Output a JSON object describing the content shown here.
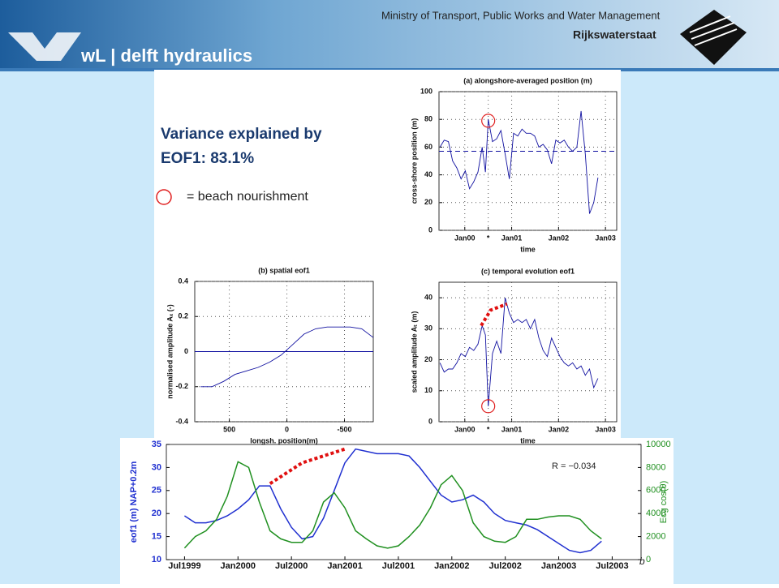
{
  "header": {
    "logo_text": "wL | delft hydraulics",
    "ministry": "Ministry of Transport, Public Works and Water Management",
    "agency": "Rijkswaterstaat"
  },
  "annotations": {
    "variance_line1": "Variance explained by",
    "variance_line2": "EOF1: 83.1%",
    "legend_circle": "= beach nourishment",
    "correlation": "R = −0.034",
    "panel_letter": "b"
  },
  "chart_data": [
    {
      "type": "line",
      "title": "(a) alongshore-averaged position (m)",
      "xlabel": "time",
      "ylabel": "cross-shore position (m)",
      "x": [
        1999.47,
        1999.56,
        1999.65,
        1999.74,
        1999.83,
        1999.92,
        2000.01,
        2000.1,
        2000.19,
        2000.28,
        2000.37,
        2000.44,
        2000.5,
        2000.59,
        2000.68,
        2000.77,
        2000.86,
        2000.95,
        2001.04,
        2001.13,
        2001.22,
        2001.31,
        2001.4,
        2001.49,
        2001.58,
        2001.67,
        2001.76,
        2001.85,
        2001.94,
        2002.03,
        2002.12,
        2002.21,
        2002.3,
        2002.39,
        2002.48,
        2002.57,
        2002.66,
        2002.75,
        2002.84
      ],
      "series": [
        {
          "color": "#1010a0",
          "values": [
            60,
            65,
            64,
            50,
            45,
            37,
            43,
            30,
            35,
            42,
            60,
            42,
            80,
            64,
            66,
            72,
            55,
            37,
            70,
            68,
            73,
            70,
            70,
            68,
            60,
            62,
            58,
            48,
            65,
            63,
            65,
            60,
            57,
            60,
            86,
            55,
            12,
            20,
            38
          ]
        }
      ],
      "hline": 57,
      "hline_color": "#1010a0",
      "markers": [
        {
          "x": 2000.5,
          "y": 79
        }
      ],
      "xlim": [
        1999.45,
        2003.24
      ],
      "ylim": [
        0,
        100
      ],
      "xticks": [
        {
          "value": 2000,
          "label": "Jan00"
        },
        {
          "value": 2000.5,
          "label": "*"
        },
        {
          "value": 2001,
          "label": "Jan01"
        },
        {
          "value": 2002,
          "label": "Jan02"
        },
        {
          "value": 2003,
          "label": "Jan03"
        }
      ],
      "yticks": [
        0,
        20,
        40,
        60,
        80,
        100
      ],
      "grid": true
    },
    {
      "type": "line",
      "title": "(b) spatial eof1",
      "xlabel": "longsh. position(m)",
      "ylabel": "normalised amplitude Aₓ (-)",
      "x": [
        750,
        650,
        550,
        450,
        350,
        250,
        150,
        50,
        -50,
        -150,
        -250,
        -350,
        -450,
        -550,
        -650,
        -750
      ],
      "series": [
        {
          "color": "#1010a0",
          "values": [
            -0.2,
            -0.2,
            -0.17,
            -0.13,
            -0.11,
            -0.09,
            -0.06,
            -0.02,
            0.04,
            0.1,
            0.13,
            0.14,
            0.14,
            0.14,
            0.13,
            0.08
          ]
        }
      ],
      "hline": 0,
      "hline_color": "#1010a0",
      "xlim": [
        800,
        -750
      ],
      "ylim": [
        -0.4,
        0.4
      ],
      "xticks": [
        500,
        0,
        -500
      ],
      "yticks": [
        -0.4,
        -0.2,
        0,
        0.2,
        0.4
      ],
      "grid": true
    },
    {
      "type": "line",
      "title": "(c) temporal evolution eof1",
      "xlabel": "time",
      "ylabel": "scaled amplitude Aₜ (m)",
      "x": [
        1999.47,
        1999.56,
        1999.65,
        1999.74,
        1999.83,
        1999.92,
        2000.01,
        2000.1,
        2000.19,
        2000.28,
        2000.37,
        2000.44,
        2000.5,
        2000.59,
        2000.68,
        2000.77,
        2000.86,
        2000.95,
        2001.04,
        2001.13,
        2001.22,
        2001.31,
        2001.4,
        2001.49,
        2001.58,
        2001.67,
        2001.76,
        2001.85,
        2001.94,
        2002.03,
        2002.12,
        2002.21,
        2002.3,
        2002.39,
        2002.48,
        2002.57,
        2002.66,
        2002.75,
        2002.84
      ],
      "series": [
        {
          "color": "#1010a0",
          "values": [
            19,
            16,
            17,
            17,
            19,
            22,
            21,
            24,
            23,
            25,
            31,
            28,
            5,
            22,
            26,
            22,
            40,
            35,
            32,
            33,
            32,
            33,
            30,
            33,
            27,
            23,
            21,
            27,
            24,
            21,
            19,
            18,
            19,
            17,
            18,
            15,
            17,
            11,
            14
          ]
        }
      ],
      "trend": {
        "x": [
          2000.35,
          2000.55,
          2000.9
        ],
        "y": [
          31,
          36,
          38
        ],
        "color": "#e01010"
      },
      "markers": [
        {
          "x": 2000.5,
          "y": 5
        }
      ],
      "xlim": [
        1999.45,
        2003.24
      ],
      "ylim": [
        0,
        45
      ],
      "xticks": [
        {
          "value": 2000,
          "label": "Jan00"
        },
        {
          "value": 2000.5,
          "label": "*"
        },
        {
          "value": 2001,
          "label": "Jan01"
        },
        {
          "value": 2002,
          "label": "Jan02"
        },
        {
          "value": 2003,
          "label": "Jan03"
        }
      ],
      "yticks": [
        0,
        10,
        20,
        30,
        40
      ],
      "grid": true
    },
    {
      "type": "line",
      "ylabel": "eof1 (m) NAP+0.2m",
      "y2label": "Ecg cos(θ)",
      "x": [
        1999.5,
        1999.6,
        1999.7,
        1999.8,
        1999.9,
        2000.0,
        2000.1,
        2000.2,
        2000.3,
        2000.4,
        2000.5,
        2000.6,
        2000.7,
        2000.8,
        2000.9,
        2001.0,
        2001.1,
        2001.2,
        2001.3,
        2001.4,
        2001.5,
        2001.6,
        2001.7,
        2001.8,
        2001.9,
        2002.0,
        2002.1,
        2002.2,
        2002.3,
        2002.4,
        2002.5,
        2002.6,
        2002.7,
        2002.8,
        2002.9,
        2003.0,
        2003.1,
        2003.2,
        2003.3,
        2003.4
      ],
      "series": [
        {
          "color": "#2030d0",
          "values": [
            19.5,
            18,
            18,
            18.5,
            19.5,
            21,
            23,
            26,
            26,
            21,
            17,
            14.5,
            15,
            19,
            25,
            31,
            34,
            33.5,
            33,
            33,
            33,
            32.5,
            30,
            27,
            24,
            22.5,
            23,
            24,
            22.5,
            20,
            18.5,
            18,
            17.5,
            16.5,
            15,
            13.5,
            12,
            11.5,
            12,
            14
          ]
        },
        {
          "color": "#209020",
          "axis": "y2",
          "values": [
            1000,
            2000,
            2500,
            3500,
            5500,
            8500,
            8000,
            5000,
            2500,
            1800,
            1500,
            1500,
            2500,
            5000,
            5800,
            4500,
            2500,
            1800,
            1200,
            1000,
            1200,
            2000,
            3000,
            4500,
            6500,
            7300,
            6000,
            3200,
            2000,
            1600,
            1500,
            2000,
            3500,
            3500,
            3700,
            3800,
            3800,
            3500,
            2500,
            1800
          ]
        }
      ],
      "trend": {
        "x": [
          2000.3,
          2000.6,
          2001.0
        ],
        "y": [
          26.5,
          31,
          34
        ],
        "color": "#e01010"
      },
      "xlim": [
        1999.33,
        2003.77
      ],
      "ylim": [
        10,
        35
      ],
      "y2lim": [
        0,
        10000
      ],
      "xticks": [
        {
          "value": 1999.5,
          "label": "Jul1999"
        },
        {
          "value": 2000,
          "label": "Jan2000"
        },
        {
          "value": 2000.5,
          "label": "Jul2000"
        },
        {
          "value": 2001,
          "label": "Jan2001"
        },
        {
          "value": 2001.5,
          "label": "Jul2001"
        },
        {
          "value": 2002,
          "label": "Jan2002"
        },
        {
          "value": 2002.5,
          "label": "Jul2002"
        },
        {
          "value": 2003,
          "label": "Jan2003"
        },
        {
          "value": 2003.5,
          "label": "Jul2003"
        }
      ],
      "yticks": [
        10,
        15,
        20,
        25,
        30,
        35
      ],
      "y2ticks": [
        0,
        2000,
        4000,
        6000,
        8000,
        10000
      ],
      "grid": false
    }
  ]
}
